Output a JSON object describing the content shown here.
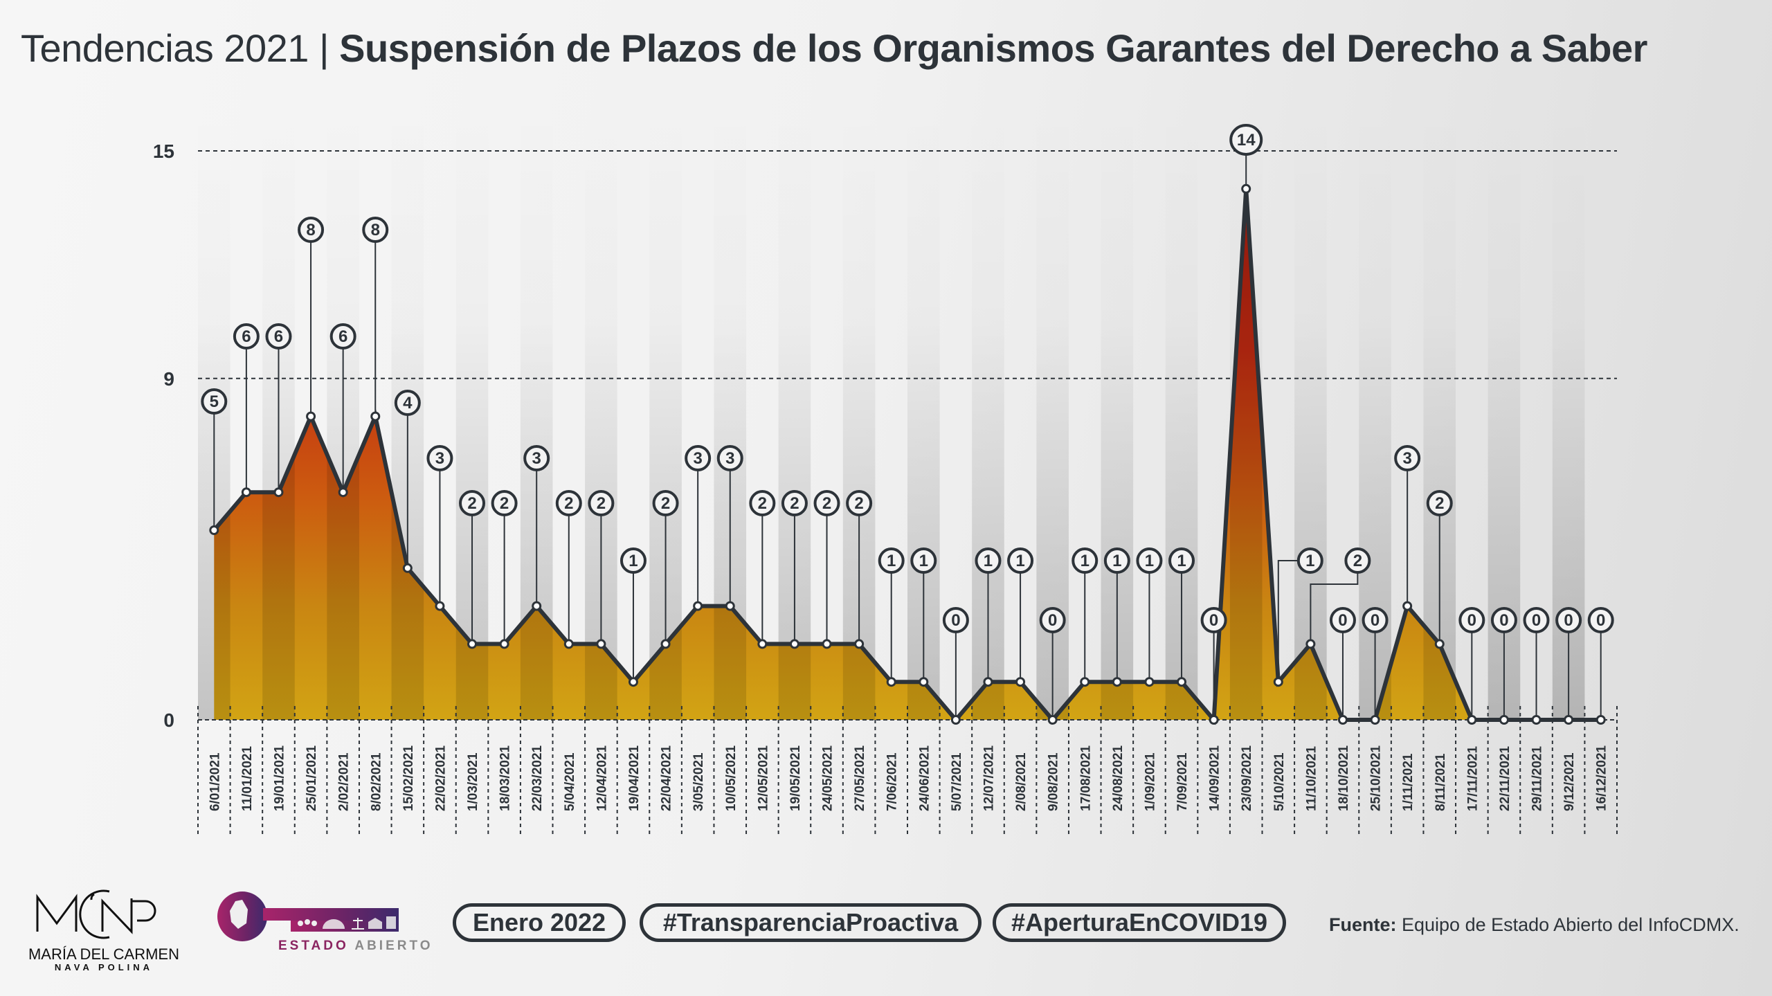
{
  "title": {
    "prefix": "Tendencias 2021 | ",
    "main": "Suspensión de Plazos de los Organismos Garantes del Derecho a Saber"
  },
  "chart_data": {
    "type": "area",
    "title": "Tendencias 2021 | Suspensión de Plazos de los Organismos Garantes del Derecho a Saber",
    "xlabel": "",
    "ylabel": "",
    "ylim": [
      0,
      15
    ],
    "yticks": [
      0,
      9,
      15
    ],
    "grid": "horizontal dashed at 9 and 15",
    "legend": "none",
    "categories": [
      "6/01/2021",
      "11/01/2021",
      "19/01/2021",
      "25/01/2021",
      "2/02/2021",
      "8/02/2021",
      "15/02/2021",
      "22/02/2021",
      "1/03/2021",
      "18/03/2021",
      "22/03/2021",
      "5/04/2021",
      "12/04/2021",
      "19/04/2021",
      "22/04/2021",
      "3/05/2021",
      "10/05/2021",
      "12/05/2021",
      "19/05/2021",
      "24/05/2021",
      "27/05/2021",
      "7/06/2021",
      "24/06/2021",
      "5/07/2021",
      "12/07/2021",
      "2/08/2021",
      "9/08/2021",
      "17/08/2021",
      "24/08/2021",
      "1/09/2021",
      "7/09/2021",
      "14/09/2021",
      "23/09/2021",
      "5/10/2021",
      "11/10/2021",
      "18/10/2021",
      "25/10/2021",
      "1/11/2021",
      "8/11/2021",
      "17/11/2021",
      "22/11/2021",
      "29/11/2021",
      "9/12/2021",
      "16/12/2021"
    ],
    "values": [
      5,
      6,
      6,
      8,
      6,
      8,
      4,
      3,
      2,
      2,
      3,
      2,
      2,
      1,
      2,
      3,
      3,
      2,
      2,
      2,
      2,
      1,
      1,
      0,
      1,
      1,
      0,
      1,
      1,
      1,
      1,
      0,
      14,
      1,
      2,
      0,
      0,
      3,
      2,
      0,
      0,
      0,
      0,
      0
    ]
  },
  "footer": {
    "logo1": {
      "mark": "MCNP",
      "name": "MARÍA DEL CARMEN",
      "sub": "NAVA POLINA"
    },
    "logo2": {
      "word1": "ESTADO",
      "word2": "ABIERTO"
    },
    "pills": [
      "Enero 2022",
      "#TransparenciaProactiva",
      "#AperturaEnCOVID19"
    ],
    "source_label": "Fuente:",
    "source_text": " Equipo de Estado Abierto del InfoCDMX."
  },
  "colors": {
    "ink": "#2d3339",
    "area_top": "#c8321a",
    "area_mid": "#d06a10",
    "area_bottom": "#d2a012",
    "brand_purple": "#8a2460"
  }
}
